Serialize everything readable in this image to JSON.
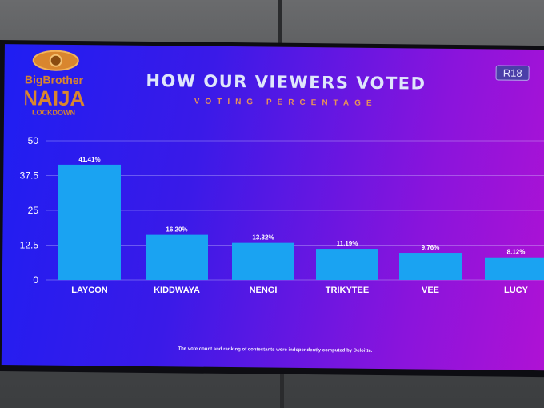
{
  "header": {
    "title": "HOW OUR VIEWERS VOTED",
    "subtitle": "VOTING PERCENTAGE",
    "rating_badge": "R18",
    "logo_text": "Big Brother Naija Lockdown"
  },
  "footnote": "The vote count and ranking of contestants were independently computed by Deloitte.",
  "colors": {
    "bar": "#1aa3f2",
    "background_left": "#1f1ef2",
    "background_right": "#b012d4",
    "accent": "#e6925a"
  },
  "chart_data": {
    "type": "bar",
    "title": "HOW OUR VIEWERS VOTED",
    "subtitle": "VOTING PERCENTAGE",
    "categories": [
      "LAYCON",
      "KIDDWAYA",
      "NENGI",
      "TRIKYTEE",
      "VEE",
      "LUCY"
    ],
    "values": [
      41.41,
      16.2,
      13.32,
      11.19,
      9.76,
      8.12
    ],
    "data_labels": [
      "41.41%",
      "16.20%",
      "13.32%",
      "11.19%",
      "9.76%",
      "8.12%"
    ],
    "yticks": [
      "0",
      "12.5",
      "25",
      "37.5",
      "50"
    ],
    "ylim": [
      0,
      50
    ],
    "grid": true,
    "xlabel": "",
    "ylabel": ""
  }
}
